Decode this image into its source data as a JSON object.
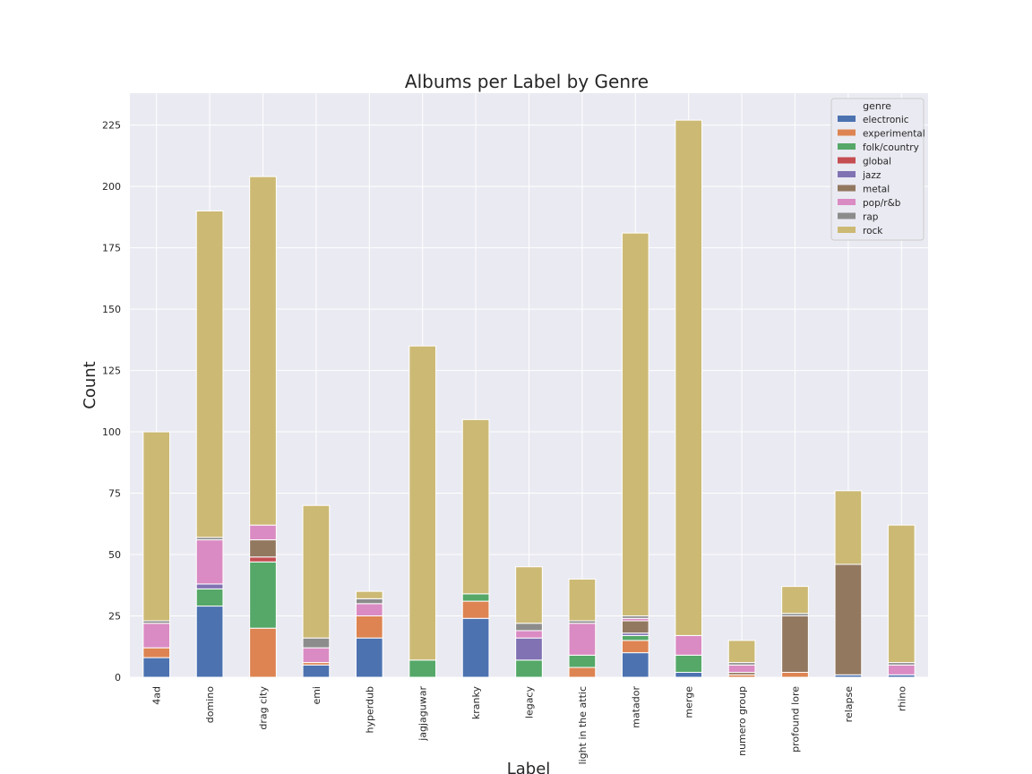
{
  "chart_data": {
    "type": "bar",
    "stacked": true,
    "title": "Albums per Label by Genre",
    "xlabel": "Label",
    "ylabel": "Count",
    "ylim": [
      0,
      238
    ],
    "yticks": [
      0,
      25,
      50,
      75,
      100,
      125,
      150,
      175,
      200,
      225
    ],
    "grid": true,
    "legend_title": "genre",
    "legend_position": "top-right",
    "categories": [
      "4ad",
      "domino",
      "drag city",
      "emi",
      "hyperdub",
      "jagjaguwar",
      "kranky",
      "legacy",
      "light in the attic",
      "matador",
      "merge",
      "numero group",
      "profound lore",
      "relapse",
      "rhino"
    ],
    "series": [
      {
        "name": "electronic",
        "color": "#4c72b0",
        "values": [
          8,
          29,
          0,
          5,
          16,
          0,
          24,
          0,
          0,
          10,
          2,
          0,
          0,
          1,
          1
        ]
      },
      {
        "name": "experimental",
        "color": "#dd8452",
        "values": [
          4,
          0,
          20,
          1,
          9,
          0,
          7,
          0,
          4,
          5,
          0,
          1,
          2,
          0,
          0
        ]
      },
      {
        "name": "folk/country",
        "color": "#55a868",
        "values": [
          0,
          7,
          27,
          0,
          0,
          7,
          3,
          7,
          5,
          2,
          7,
          0,
          0,
          0,
          0
        ]
      },
      {
        "name": "global",
        "color": "#c44e52",
        "values": [
          0,
          0,
          2,
          0,
          0,
          0,
          0,
          0,
          0,
          0,
          0,
          0,
          0,
          0,
          0
        ]
      },
      {
        "name": "jazz",
        "color": "#8172b3",
        "values": [
          0,
          2,
          0,
          0,
          0,
          0,
          0,
          9,
          0,
          1,
          0,
          0,
          0,
          0,
          0
        ]
      },
      {
        "name": "metal",
        "color": "#937860",
        "values": [
          0,
          0,
          7,
          0,
          0,
          0,
          0,
          0,
          0,
          5,
          0,
          1,
          23,
          45,
          0
        ]
      },
      {
        "name": "pop/r&b",
        "color": "#da8bc3",
        "values": [
          10,
          18,
          6,
          6,
          5,
          0,
          0,
          3,
          13,
          1,
          8,
          3,
          0,
          0,
          4
        ]
      },
      {
        "name": "rap",
        "color": "#8c8c8c",
        "values": [
          1,
          1,
          0,
          4,
          2,
          0,
          0,
          3,
          1,
          1,
          0,
          1,
          1,
          0,
          1
        ]
      },
      {
        "name": "rock",
        "color": "#ccb974",
        "values": [
          77,
          133,
          142,
          54,
          3,
          128,
          71,
          23,
          17,
          156,
          210,
          9,
          11,
          30,
          56
        ]
      }
    ]
  }
}
